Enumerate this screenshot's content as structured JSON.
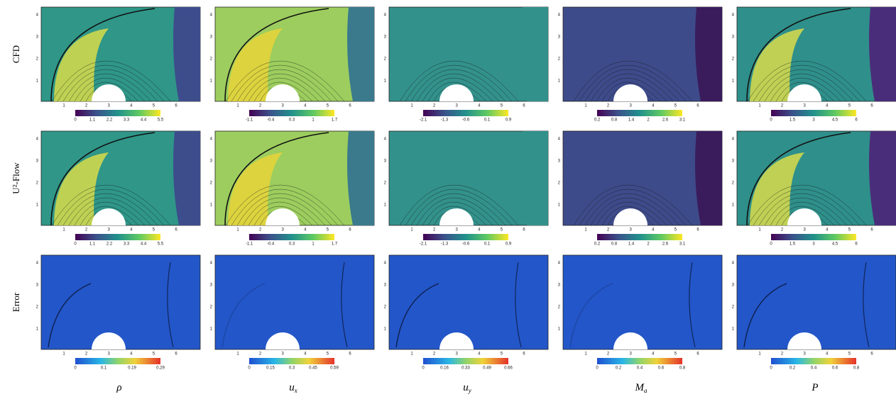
{
  "rows": [
    "CFD",
    "U²-Flow",
    "Error"
  ],
  "columns": [
    {
      "symbol": "ρ",
      "sub": ""
    },
    {
      "symbol": "u",
      "sub": "x"
    },
    {
      "symbol": "u",
      "sub": "y"
    },
    {
      "symbol": "M",
      "sub": "a"
    },
    {
      "symbol": "P",
      "sub": ""
    }
  ],
  "x_ticks": [
    "1",
    "2",
    "3",
    "4",
    "5",
    "6"
  ],
  "y_ticks": [
    "1",
    "2",
    "3",
    "4"
  ],
  "colorbar_ticks": [
    [
      [
        "0",
        "1.1",
        "2.2",
        "3.3",
        "4.4",
        "5.5"
      ],
      [
        "-1.1",
        "-0.4",
        "0.3",
        "1",
        "1.7"
      ],
      [
        "-2.1",
        "-1.3",
        "-0.6",
        "0.1",
        "0.9"
      ],
      [
        "0.2",
        "0.8",
        "1.4",
        "2",
        "2.6",
        "3.1"
      ],
      [
        "0",
        "1.5",
        "3",
        "4.5",
        "6"
      ]
    ],
    [
      [
        "0",
        "1.1",
        "2.2",
        "3.3",
        "4.4",
        "5.5"
      ],
      [
        "-1.1",
        "-0.4",
        "0.3",
        "1",
        "1.7"
      ],
      [
        "-2.1",
        "-1.3",
        "-0.6",
        "0.1",
        "0.9"
      ],
      [
        "0.2",
        "0.8",
        "1.4",
        "2",
        "2.6",
        "3.1"
      ],
      [
        "0",
        "1.5",
        "3",
        "4.5",
        "6"
      ]
    ],
    [
      [
        "0",
        "0.1",
        "0.19",
        "0.29"
      ],
      [
        "0",
        "0.15",
        "0.3",
        "0.45",
        "0.59"
      ],
      [
        "0",
        "0.16",
        "0.33",
        "0.49",
        "0.66"
      ],
      [
        "0",
        "0.2",
        "0.4",
        "0.6",
        "0.8"
      ],
      [
        "0",
        "0.2",
        "0.4",
        "0.6",
        "0.8"
      ]
    ]
  ]
}
